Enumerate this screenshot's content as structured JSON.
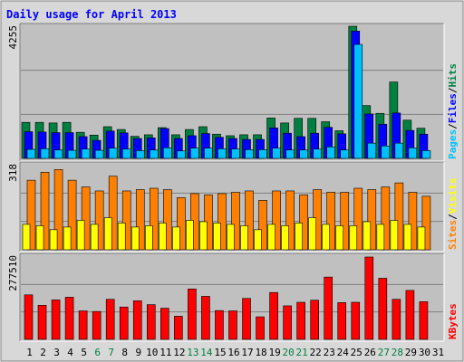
{
  "chart_data": {
    "type": "bar",
    "title": "Daily usage for April 2013",
    "categories": [
      "1",
      "2",
      "3",
      "4",
      "5",
      "6",
      "7",
      "8",
      "9",
      "10",
      "11",
      "12",
      "13",
      "14",
      "15",
      "16",
      "17",
      "18",
      "19",
      "20",
      "21",
      "22",
      "23",
      "24",
      "25",
      "26",
      "27",
      "28",
      "29",
      "30",
      "31"
    ],
    "weekend_days": [
      6,
      7,
      13,
      14,
      20,
      21,
      27,
      28
    ],
    "colors": {
      "title": "#0000ff",
      "hits": "#008040",
      "files": "#0000ff",
      "pages": "#00c0ff",
      "visits": "#ffff00",
      "sites": "#ff8000",
      "kb": "#ff0000",
      "weekend_label": "#008040",
      "weekday_label": "#000000",
      "panel_bg": "#c0c0c0",
      "frame_bg": "#d8d8d8"
    },
    "panels": [
      {
        "id": "top",
        "ymax": 4255,
        "ymax_label": "4255",
        "legend": [
          {
            "text": "Hits",
            "color": "#008040"
          },
          {
            "text": "/",
            "color": "#000000"
          },
          {
            "text": "Files",
            "color": "#0000ff"
          },
          {
            "text": "/",
            "color": "#000000"
          },
          {
            "text": "Pages",
            "color": "#00c0ff"
          }
        ],
        "series": [
          {
            "name": "Hits",
            "color": "#008040",
            "values": [
              1160,
              1160,
              1140,
              1160,
              840,
              750,
              1020,
              930,
              710,
              760,
              990,
              760,
              930,
              1020,
              780,
              730,
              760,
              760,
              1300,
              1140,
              1290,
              1290,
              1180,
              890,
              4255,
              1700,
              1450,
              2460,
              1230,
              970,
              0
            ]
          },
          {
            "name": "Files",
            "color": "#0000ff",
            "values": [
              860,
              850,
              830,
              830,
              700,
              580,
              880,
              820,
              640,
              660,
              960,
              640,
              730,
              800,
              680,
              640,
              610,
              610,
              980,
              810,
              700,
              810,
              1000,
              790,
              4100,
              1430,
              1100,
              1460,
              900,
              780,
              0
            ]
          },
          {
            "name": "Pages",
            "color": "#00c0ff",
            "values": [
              290,
              310,
              270,
              260,
              300,
              260,
              330,
              300,
              250,
              270,
              340,
              240,
              330,
              330,
              310,
              300,
              280,
              280,
              330,
              270,
              270,
              300,
              370,
              270,
              3670,
              490,
              400,
              490,
              340,
              250,
              0
            ]
          }
        ]
      },
      {
        "id": "mid",
        "ymax": 318,
        "ymax_label": "318",
        "legend": [
          {
            "text": "Visits",
            "color": "#ffff00"
          },
          {
            "text": "/",
            "color": "#000000"
          },
          {
            "text": "Sites",
            "color": "#ff8000"
          }
        ],
        "series": [
          {
            "name": "Visits",
            "color": "#ffff00",
            "values": [
              95,
              90,
              75,
              85,
              110,
              95,
              120,
              100,
              85,
              90,
              100,
              85,
              110,
              105,
              100,
              95,
              90,
              75,
              95,
              90,
              100,
              120,
              95,
              90,
              90,
              105,
              95,
              110,
              95,
              85,
              0
            ]
          },
          {
            "name": "Sites",
            "color": "#ff8000",
            "values": [
              260,
              290,
              300,
              260,
              235,
              220,
              275,
              220,
              225,
              230,
              225,
              195,
              210,
              205,
              210,
              215,
              220,
              185,
              220,
              220,
              205,
              225,
              215,
              215,
              230,
              225,
              235,
              250,
              215,
              200,
              0
            ]
          }
        ]
      },
      {
        "id": "bot",
        "ymax": 277510,
        "ymax_label": "277510",
        "legend": [
          {
            "text": "KBytes",
            "color": "#ff0000"
          }
        ],
        "series": [
          {
            "name": "KBytes",
            "color": "#ff0000",
            "values": [
              150000,
              115000,
              133000,
              142000,
              96000,
              94000,
              135000,
              109000,
              130000,
              117000,
              105000,
              78000,
              170000,
              145000,
              97000,
              96000,
              138000,
              76000,
              158000,
              113000,
              125000,
              132000,
              210000,
              124000,
              125000,
              277510,
              206000,
              135000,
              165000,
              127000,
              0
            ]
          }
        ]
      }
    ]
  }
}
